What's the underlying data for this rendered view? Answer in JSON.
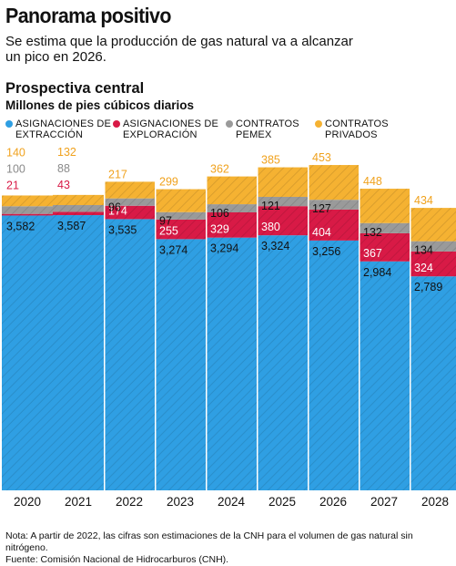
{
  "header": {
    "title": "Panorama positivo",
    "subtitle": "Se estima que la producción de gas natural va a alcanzar un pico en 2026."
  },
  "section": {
    "title": "Prospectiva central",
    "unit": "Millones de pies cúbicos diarios"
  },
  "legend": [
    {
      "label": "ASIGNACIONES DE EXTRACCIÓN",
      "color": "#2f9fe3"
    },
    {
      "label": "ASIGNACIONES DE EXPLORACIÓN",
      "color": "#d81a46"
    },
    {
      "label": "CONTRATOS PEMEX",
      "color": "#9a9a9a"
    },
    {
      "label": "CONTRATOS PRIVADOS",
      "color": "#f5b232"
    }
  ],
  "chart_data": {
    "type": "bar",
    "stacked": true,
    "categories": [
      "2020",
      "2021",
      "2022",
      "2023",
      "2024",
      "2025",
      "2026",
      "2027",
      "2028"
    ],
    "series": [
      {
        "name": "ASIGNACIONES DE EXTRACCIÓN",
        "color": "#2f9fe3",
        "values": [
          3582,
          3587,
          3535,
          3274,
          3294,
          3324,
          3256,
          2984,
          2789
        ],
        "labels": [
          "3,582",
          "3,587",
          "3,535",
          "3,274",
          "3,294",
          "3,324",
          "3,256",
          "2,984",
          "2,789"
        ]
      },
      {
        "name": "ASIGNACIONES DE EXPLORACIÓN",
        "color": "#d81a46",
        "values": [
          21,
          43,
          174,
          255,
          329,
          380,
          404,
          367,
          324
        ],
        "labels": [
          "21",
          "43",
          "174",
          "255",
          "329",
          "380",
          "404",
          "367",
          "324"
        ]
      },
      {
        "name": "CONTRATOS PEMEX",
        "color": "#9a9a9a",
        "values": [
          100,
          88,
          96,
          97,
          106,
          121,
          127,
          132,
          134
        ],
        "labels": [
          "100",
          "88",
          "96",
          "97",
          "106",
          "121",
          "127",
          "132",
          "134"
        ]
      },
      {
        "name": "CONTRATOS PRIVADOS",
        "color": "#f5b232",
        "values": [
          140,
          132,
          217,
          299,
          362,
          385,
          453,
          448,
          434
        ],
        "labels": [
          "140",
          "132",
          "217",
          "299",
          "362",
          "385",
          "453",
          "448",
          "434"
        ]
      }
    ],
    "ylim": [
      0,
      4300
    ],
    "axes_shown": false
  },
  "footer": {
    "note": "Nota: A partir de 2022, las cifras son estimaciones de la CNH para el volumen de gas natural sin nitrógeno.",
    "source": "Fuente: Comisión Nacional de Hidrocarburos (CNH)."
  }
}
